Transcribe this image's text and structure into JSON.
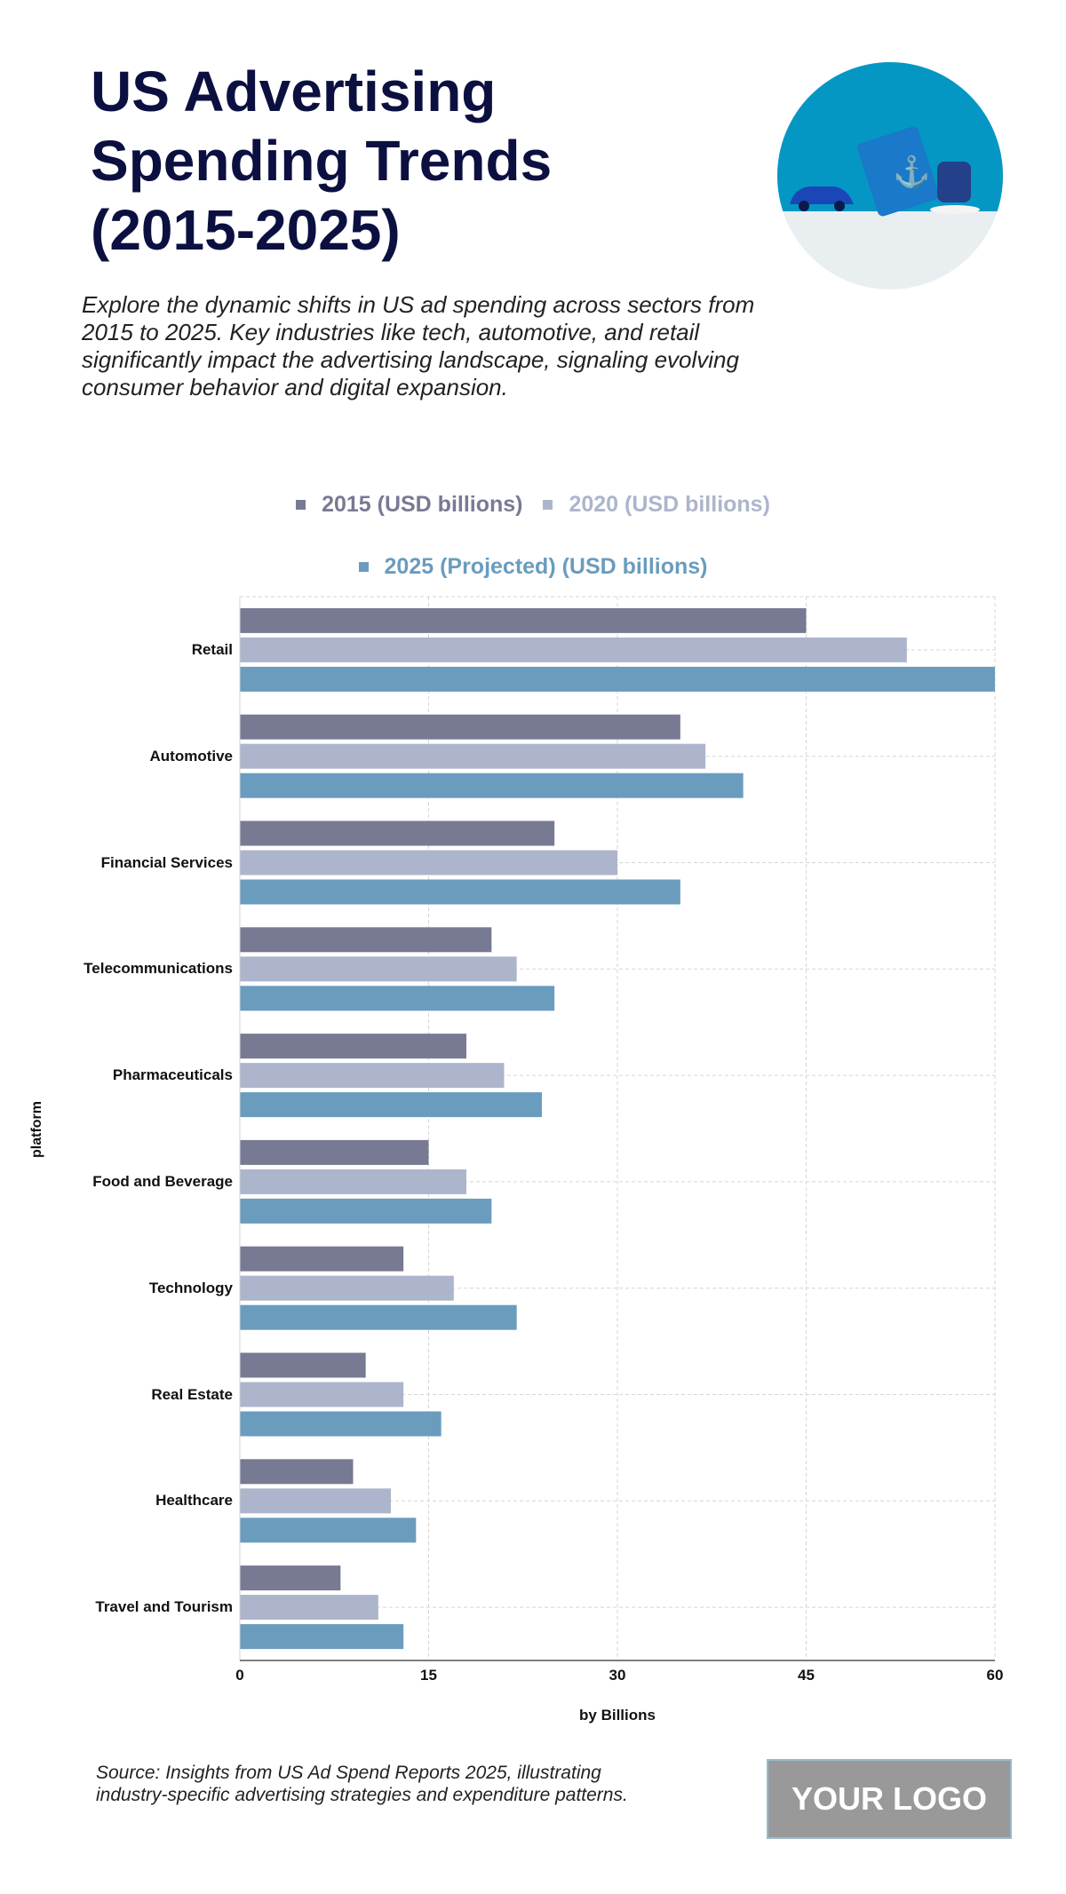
{
  "header": {
    "title": "US Advertising Spending Trends (2015-2025)",
    "subtitle": "Explore the dynamic shifts in US ad spending across sectors from 2015 to 2025. Key industries like tech, automotive, and retail significantly impact the advertising landscape, signaling evolving consumer behavior and digital expansion.",
    "image_icon": "car-bag-teacup-photo"
  },
  "chart_data": {
    "type": "bar",
    "orientation": "horizontal",
    "categories": [
      "Retail",
      "Automotive",
      "Financial Services",
      "Telecommunications",
      "Pharmaceuticals",
      "Food and Beverage",
      "Technology",
      "Real Estate",
      "Healthcare",
      "Travel and Tourism"
    ],
    "series": [
      {
        "name": "2015 (USD billions)",
        "color": "#787a94",
        "values": [
          45,
          35,
          25,
          20,
          18,
          15,
          13,
          10,
          9,
          8
        ]
      },
      {
        "name": "2020 (USD billions)",
        "color": "#acb5cb",
        "values": [
          53,
          37,
          30,
          22,
          21,
          18,
          17,
          13,
          12,
          11
        ]
      },
      {
        "name": "2025 (Projected) (USD billions)",
        "color": "#6a9cbe",
        "values": [
          60,
          40,
          35,
          25,
          24,
          20,
          22,
          16,
          14,
          13
        ]
      }
    ],
    "xlabel": "by Billions",
    "ylabel": "platform",
    "xlim": [
      0,
      60
    ],
    "xticks": [
      "0",
      "15",
      "30",
      "45",
      "60"
    ],
    "grid": true,
    "legend_placement": "top"
  },
  "footer": {
    "source": "Source: Insights from US Ad Spend Reports 2025, illustrating industry-specific advertising strategies and expenditure patterns.",
    "logo": "YOUR LOGO"
  }
}
